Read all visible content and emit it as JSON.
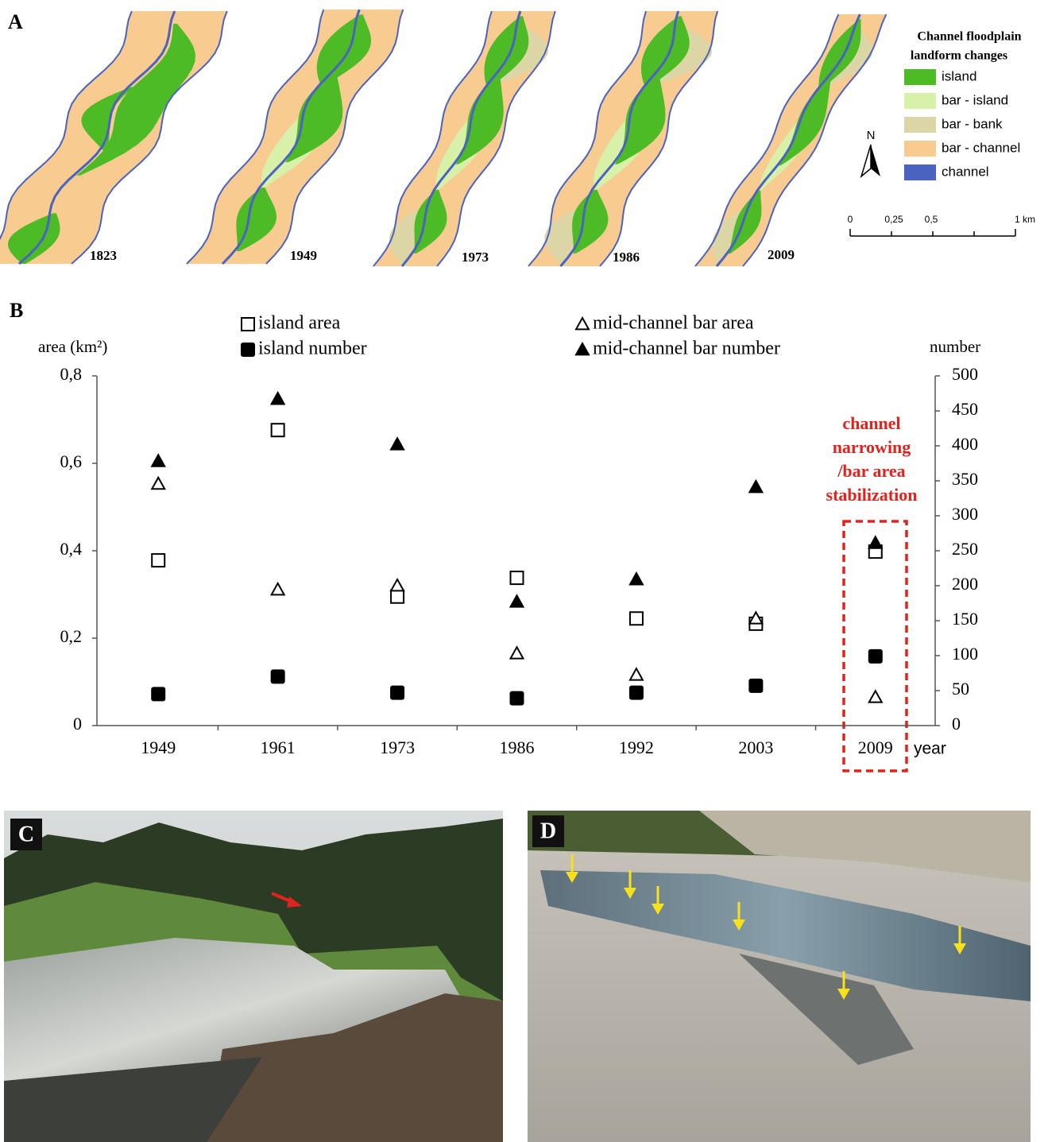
{
  "panel_a": {
    "label": "A",
    "maps": [
      "1823",
      "1949",
      "1973",
      "1986",
      "2009"
    ],
    "legend": {
      "title": [
        "Channel floodplain",
        "landform changes"
      ],
      "items": [
        {
          "label": "island",
          "color": "#4dbb26"
        },
        {
          "label": "bar - island",
          "color": "#d8f1a9"
        },
        {
          "label": "bar - bank",
          "color": "#dcd5a6"
        },
        {
          "label": "bar - channel",
          "color": "#f8cb91"
        },
        {
          "label": "channel",
          "color": "#4a62c0"
        }
      ]
    },
    "north": "N",
    "scale": [
      "0",
      "0,25",
      "0,5",
      "1 km"
    ]
  },
  "chart_data": {
    "type": "scatter",
    "panel_label": "B",
    "categories": [
      "1949",
      "1961",
      "1973",
      "1986",
      "1992",
      "2003",
      "2009"
    ],
    "x_label": "year",
    "y_label": "area (km²)",
    "y2_label": "number",
    "ylim": [
      0,
      0.8
    ],
    "yticks": [
      0,
      {
        "value": 0.2,
        "label": "0,2"
      },
      {
        "value": 0.4,
        "label": "0,4"
      },
      {
        "value": 0.6,
        "label": "0,6"
      },
      {
        "value": 0.8,
        "label": "0,8"
      }
    ],
    "y2lim": [
      0,
      500
    ],
    "y2ticks": [
      0,
      50,
      100,
      150,
      200,
      250,
      300,
      350,
      400,
      450,
      500
    ],
    "series": [
      {
        "name": "island area",
        "marker": "square-open",
        "color": "#000000",
        "values": [
          0.378,
          0.676,
          0.295,
          0.338,
          0.245,
          0.233,
          0.398
        ]
      },
      {
        "name": "island number",
        "marker": "square-filled",
        "color": "#000000",
        "axis": "y2",
        "values": [
          45,
          70,
          47,
          39,
          47,
          57,
          99
        ]
      },
      {
        "name": "mid-channel bar area",
        "marker": "triangle-open",
        "color": "#000000",
        "values": [
          0.553,
          0.311,
          0.32,
          0.165,
          0.116,
          0.245,
          0.065
        ]
      },
      {
        "name": "mid-channel bar number",
        "marker": "triangle-filled",
        "color": "#000000",
        "axis": "y2",
        "values": [
          378,
          467,
          402,
          177,
          209,
          341,
          261
        ]
      }
    ],
    "annotation": [
      "channel",
      "narrowing",
      "/bar area",
      "stabilization"
    ],
    "annotation_color": "#e0231c"
  },
  "panel_c": {
    "label": "C"
  },
  "panel_d": {
    "label": "D"
  }
}
